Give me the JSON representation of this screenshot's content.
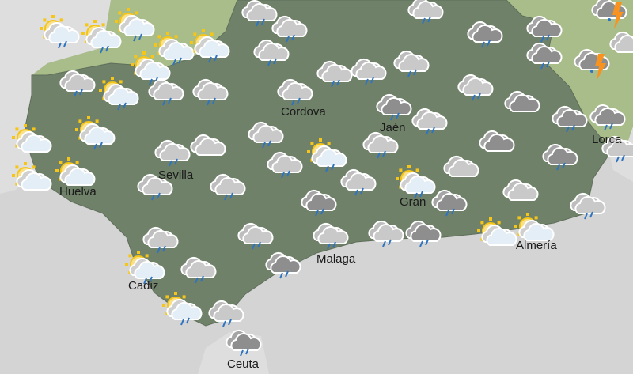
{
  "cities": {
    "cordova": "Cordova",
    "jaen": "Jaén",
    "sevilla": "Sevilla",
    "huelva": "Huelva",
    "granada": "Gran",
    "malaga": "Malaga",
    "cadiz": "Cadiz",
    "ceuta": "Ceuta",
    "almeria": "Almería",
    "lorca": "Lorca"
  },
  "colors": {
    "sea": "#d4d4d4",
    "andalusia_land": "#6f8169",
    "neighbour_land": "#a8bd8a",
    "other_land": "#dedede",
    "rain": "#2f74c0",
    "sun": "#f5c518",
    "lightning": "#f7931e"
  },
  "forecast_icons": [
    "sun-cloud-rain",
    "sun-cloud-rain",
    "sun-cloud-rain",
    "sun-cloud-rain",
    "sun-cloud-rain",
    "sun-cloud-rain",
    "cloud-rain",
    "sun-cloud-rain",
    "cloud-rain",
    "cloud-rain",
    "sun-cloud-rain",
    "sun-cloud",
    "sun-cloud",
    "sun-cloud",
    "cloud-rain",
    "cloud-rain",
    "cloud-rain",
    "cloud-rain",
    "cloud-rain",
    "cloud-rain",
    "cloud",
    "cloud-rain",
    "cloud-rain",
    "cloud-rain",
    "sun-cloud-rain",
    "cloud-rain",
    "cloud-rain",
    "cloud-rain",
    "cloud-rain",
    "dark-cloud-rain",
    "cloud-rain",
    "dark-cloud",
    "dark-cloud-rain",
    "cloud-rain",
    "cloud-rain",
    "dark-cloud",
    "cloud",
    "sun-cloud-rain",
    "cloud-rain",
    "dark-cloud-rain",
    "dark-cloud-rain",
    "cloud",
    "dark-cloud-rain",
    "dark-cloud-rain",
    "dark-cloud-rain",
    "dark-cloud-rain",
    "dark-cloud-rain",
    "storm",
    "storm",
    "cloud-rain",
    "cloud",
    "cloud-rain",
    "cloud-rain",
    "sun-cloud-rain",
    "cloud-rain",
    "cloud-rain",
    "cloud-rain",
    "cloud-rain",
    "dark-cloud-rain",
    "dark-cloud-rain",
    "sun-cloud",
    "sun-cloud",
    "sun-cloud-rain",
    "cloud-rain",
    "dark-cloud-rain"
  ]
}
